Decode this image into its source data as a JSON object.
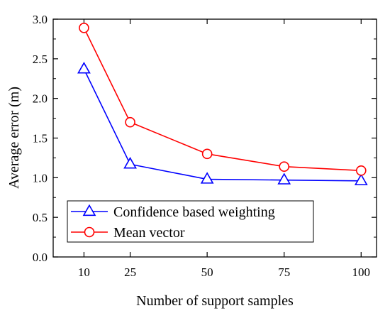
{
  "chart_data": {
    "type": "line",
    "title": "",
    "xlabel": "Number of support samples",
    "ylabel": "Average error (m)",
    "x": [
      10,
      25,
      50,
      75,
      100
    ],
    "x_tick_labels": [
      "10",
      "25",
      "50",
      "75",
      "100"
    ],
    "y_tick_labels": [
      "0.0",
      "0.5",
      "1.0",
      "1.5",
      "2.0",
      "2.5",
      "3.0"
    ],
    "xlim": [
      0,
      105
    ],
    "ylim": [
      0,
      3.0
    ],
    "grid": false,
    "legend_position": "bottom-left",
    "series": [
      {
        "name": "Confidence based weighting",
        "color": "#0000ff",
        "marker": "triangle",
        "values": [
          2.37,
          1.17,
          0.98,
          0.97,
          0.96
        ]
      },
      {
        "name": "Mean vector",
        "color": "#ff0000",
        "marker": "circle",
        "values": [
          2.89,
          1.7,
          1.3,
          1.14,
          1.09
        ]
      }
    ]
  }
}
